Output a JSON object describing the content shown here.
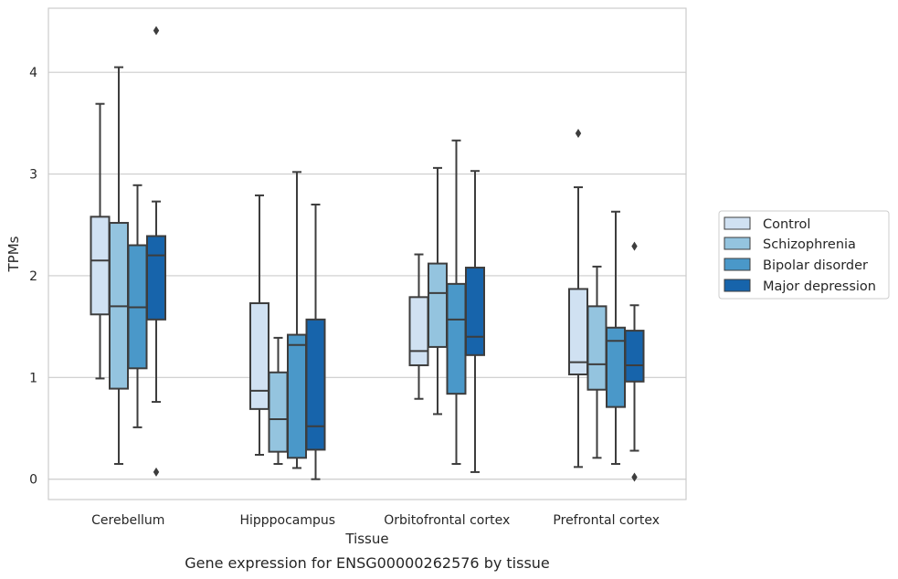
{
  "caption": "Gene expression for ENSG00000262576 by tissue",
  "chart_data": {
    "type": "box",
    "xlabel": "Tissue",
    "ylabel": "TPMs",
    "ylim": [
      -0.2,
      4.63
    ],
    "yticks": [
      0,
      1,
      2,
      3,
      4
    ],
    "grid": "horizontal",
    "legend_position": "right",
    "categories": [
      "Cerebellum",
      "Hipppocampus",
      "Orbitofrontal cortex",
      "Prefrontal cortex"
    ],
    "series": [
      {
        "name": "Control",
        "color": "#d0e1f2",
        "boxes": [
          {
            "whislo": 0.99,
            "q1": 1.62,
            "med": 2.15,
            "q3": 2.58,
            "whishi": 3.69,
            "fliers": []
          },
          {
            "whislo": 0.24,
            "q1": 0.69,
            "med": 0.87,
            "q3": 1.73,
            "whishi": 2.79,
            "fliers": []
          },
          {
            "whislo": 0.79,
            "q1": 1.12,
            "med": 1.26,
            "q3": 1.79,
            "whishi": 2.21,
            "fliers": []
          },
          {
            "whislo": 0.12,
            "q1": 1.03,
            "med": 1.15,
            "q3": 1.87,
            "whishi": 2.87,
            "fliers": [
              3.4
            ]
          }
        ]
      },
      {
        "name": "Schizophrenia",
        "color": "#94c4df",
        "boxes": [
          {
            "whislo": 0.15,
            "q1": 0.89,
            "med": 1.7,
            "q3": 2.52,
            "whishi": 4.05,
            "fliers": []
          },
          {
            "whislo": 0.15,
            "q1": 0.27,
            "med": 0.59,
            "q3": 1.05,
            "whishi": 1.39,
            "fliers": []
          },
          {
            "whislo": 0.64,
            "q1": 1.3,
            "med": 1.83,
            "q3": 2.12,
            "whishi": 3.06,
            "fliers": []
          },
          {
            "whislo": 0.21,
            "q1": 0.88,
            "med": 1.13,
            "q3": 1.7,
            "whishi": 2.09,
            "fliers": []
          }
        ]
      },
      {
        "name": "Bipolar disorder",
        "color": "#4a98c9",
        "boxes": [
          {
            "whislo": 0.51,
            "q1": 1.09,
            "med": 1.69,
            "q3": 2.3,
            "whishi": 2.89,
            "fliers": []
          },
          {
            "whislo": 0.11,
            "q1": 0.21,
            "med": 1.32,
            "q3": 1.42,
            "whishi": 3.02,
            "fliers": []
          },
          {
            "whislo": 0.15,
            "q1": 0.84,
            "med": 1.57,
            "q3": 1.92,
            "whishi": 3.33,
            "fliers": []
          },
          {
            "whislo": 0.15,
            "q1": 0.71,
            "med": 1.36,
            "q3": 1.49,
            "whishi": 2.63,
            "fliers": []
          }
        ]
      },
      {
        "name": "Major depression",
        "color": "#1764ab",
        "boxes": [
          {
            "whislo": 0.76,
            "q1": 1.57,
            "med": 2.2,
            "q3": 2.39,
            "whishi": 2.73,
            "fliers": [
              4.41,
              0.07
            ]
          },
          {
            "whislo": 0.0,
            "q1": 0.29,
            "med": 0.52,
            "q3": 1.57,
            "whishi": 2.7,
            "fliers": []
          },
          {
            "whislo": 0.07,
            "q1": 1.22,
            "med": 1.4,
            "q3": 2.08,
            "whishi": 3.03,
            "fliers": []
          },
          {
            "whislo": 0.28,
            "q1": 0.96,
            "med": 1.12,
            "q3": 1.46,
            "whishi": 1.71,
            "fliers": [
              2.29,
              0.02
            ]
          }
        ]
      }
    ]
  }
}
